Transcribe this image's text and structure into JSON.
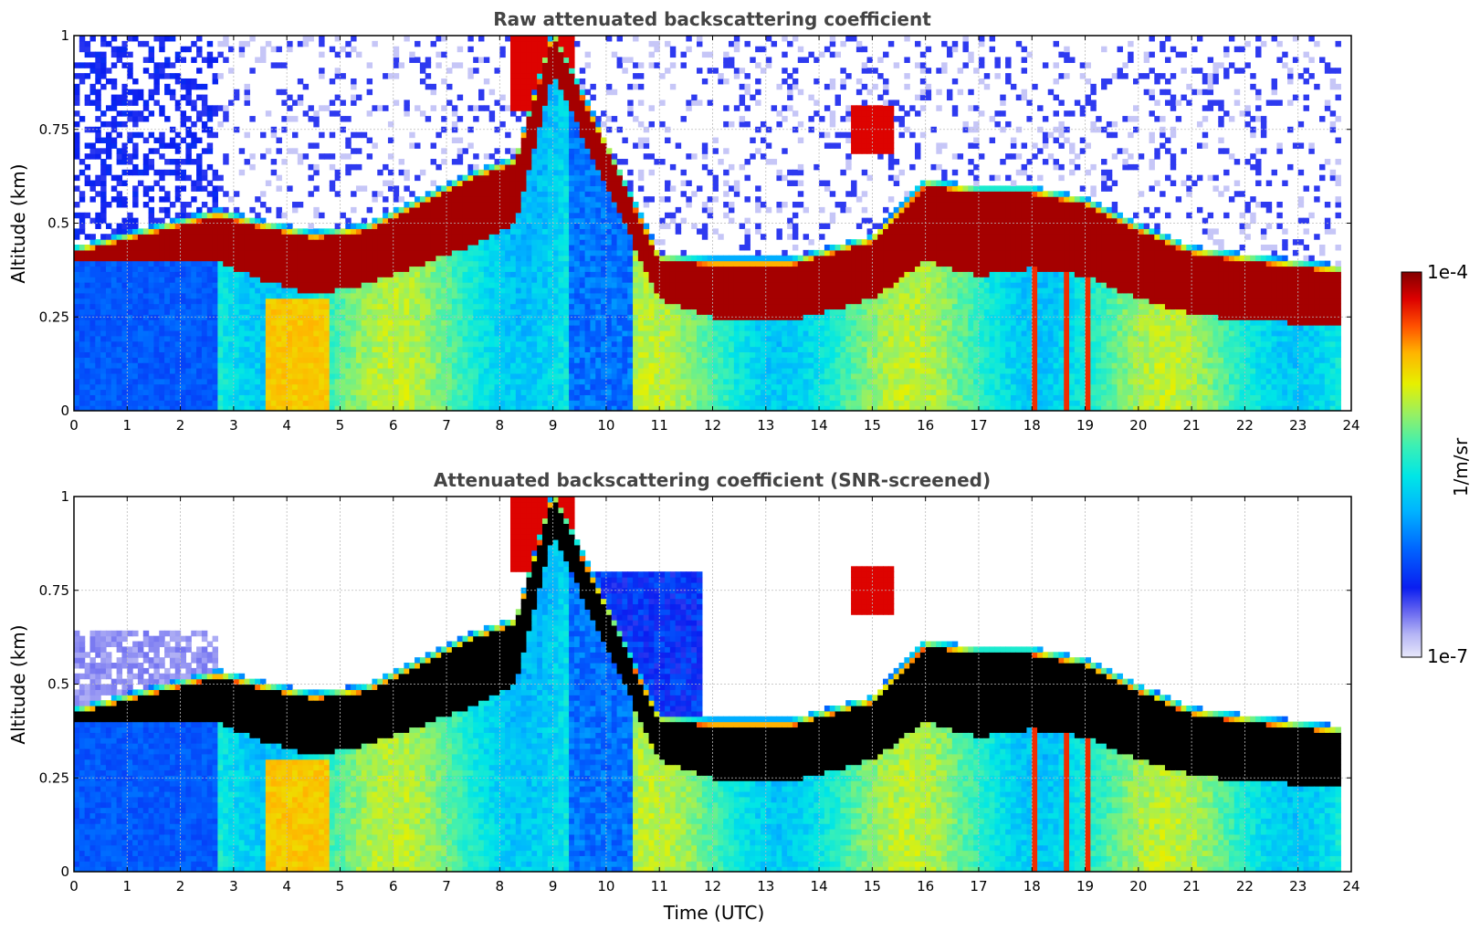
{
  "chart_data": [
    {
      "type": "heatmap",
      "title": "Raw attenuated backscattering coefficient",
      "xlabel": "",
      "ylabel": "Altitude (km)",
      "xlim": [
        0,
        24
      ],
      "ylim": [
        0,
        1
      ],
      "x_ticks": [
        "0",
        "1",
        "2",
        "3",
        "4",
        "5",
        "6",
        "7",
        "8",
        "9",
        "10",
        "11",
        "12",
        "13",
        "14",
        "15",
        "16",
        "17",
        "18",
        "19",
        "20",
        "21",
        "22",
        "23",
        "24"
      ],
      "y_ticks": [
        "0",
        "0.25",
        "0.5",
        "0.75",
        "1"
      ],
      "grid": true,
      "data_end_hour": 23.75,
      "cloud_layer": {
        "description_hours": [
          0,
          2.7,
          3.5,
          4.5,
          5.5,
          6.5,
          7.5,
          8.3,
          9,
          11,
          12,
          13.5,
          15,
          16,
          17,
          18,
          19,
          20,
          21,
          22,
          23.75
        ],
        "base_km": [
          0.4,
          0.4,
          0.35,
          0.31,
          0.34,
          0.39,
          0.44,
          0.5,
          0.9,
          0.3,
          0.25,
          0.24,
          0.3,
          0.4,
          0.36,
          0.38,
          0.36,
          0.3,
          0.26,
          0.24,
          0.23
        ],
        "top_km": [
          0.42,
          0.52,
          0.49,
          0.46,
          0.48,
          0.55,
          0.62,
          0.66,
          1.0,
          0.4,
          0.39,
          0.39,
          0.45,
          0.6,
          0.58,
          0.58,
          0.55,
          0.48,
          0.42,
          0.4,
          0.37
        ]
      }
    },
    {
      "type": "heatmap",
      "title": "Attenuated backscattering coefficient (SNR-screened)",
      "xlabel": "Time (UTC)",
      "ylabel": "Altitude (km)",
      "xlim": [
        0,
        24
      ],
      "ylim": [
        0,
        1
      ],
      "x_ticks": [
        "0",
        "1",
        "2",
        "3",
        "4",
        "5",
        "6",
        "7",
        "8",
        "9",
        "10",
        "11",
        "12",
        "13",
        "14",
        "15",
        "16",
        "17",
        "18",
        "19",
        "20",
        "21",
        "22",
        "23",
        "24"
      ],
      "y_ticks": [
        "0",
        "0.25",
        "0.5",
        "0.75",
        "1"
      ],
      "grid": true,
      "data_end_hour": 23.75
    }
  ],
  "colorbar": {
    "label": "1/m/sr",
    "max_label": "1e-4",
    "min_label": "1e-7",
    "colormap": [
      "#e8e8fa",
      "#b4b4f5",
      "#6464f0",
      "#0a1ef0",
      "#0064ff",
      "#00b4ff",
      "#00e6e6",
      "#3cf0b4",
      "#96f064",
      "#e6f000",
      "#ffb400",
      "#ff5000",
      "#dc0000",
      "#820000"
    ],
    "screened_saturation_color": "#000000"
  }
}
